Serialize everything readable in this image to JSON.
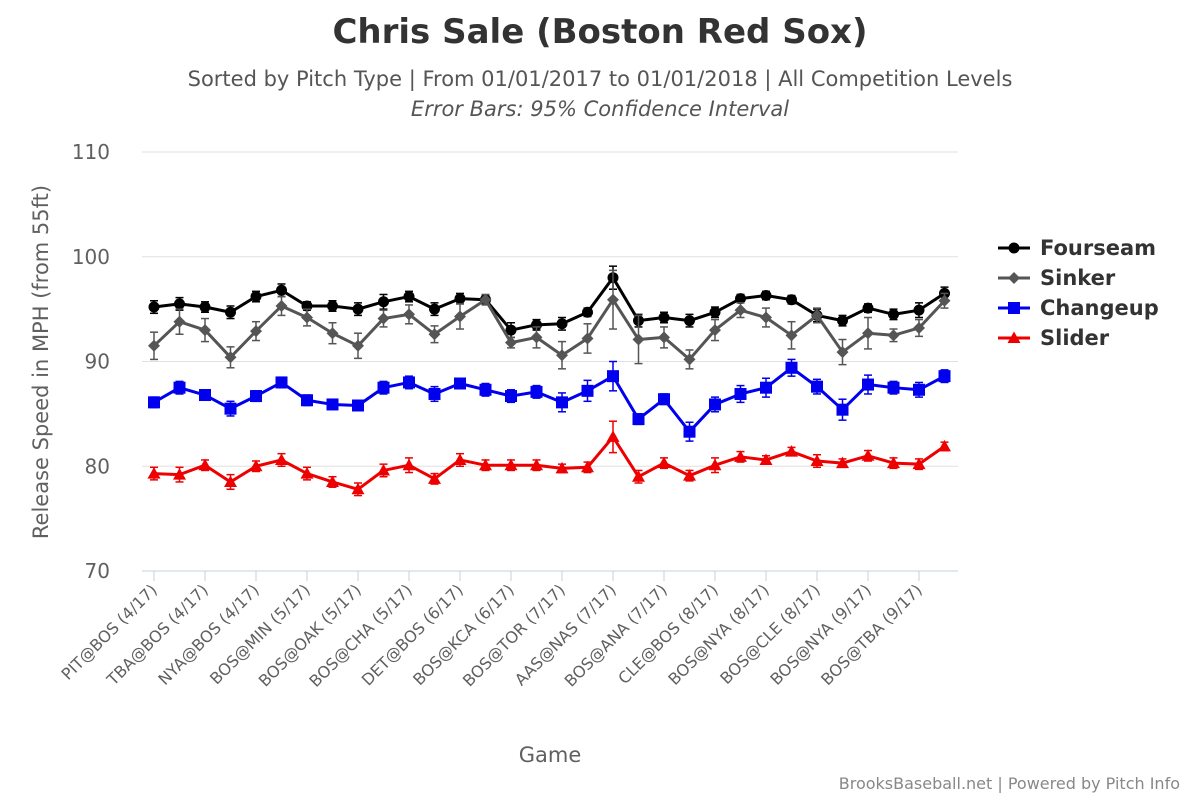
{
  "title": "Chris Sale (Boston Red Sox)",
  "subtitle": "Sorted by Pitch Type | From 01/01/2017 to 01/01/2018 | All Competition Levels",
  "subtitle2": "Error Bars: 95% Confidence Interval",
  "credits": "BrooksBaseball.net | Powered by Pitch Info",
  "chart_data": {
    "type": "line",
    "xlabel": "Game",
    "ylabel": "Release Speed in MPH (from 55ft)",
    "ylim": [
      70,
      110
    ],
    "yticks": [
      70,
      80,
      90,
      100,
      110
    ],
    "grid": true,
    "legend_position": "right",
    "tick_labels": [
      "PIT@BOS (4/17)",
      "TBA@BOS (4/17)",
      "NYA@BOS (4/17)",
      "BOS@MIN (5/17)",
      "BOS@OAK (5/17)",
      "BOS@CHA (5/17)",
      "DET@BOS (6/17)",
      "BOS@KCA (6/17)",
      "BOS@TOR (7/17)",
      "AAS@NAS (7/17)",
      "BOS@ANA (7/17)",
      "CLE@BOS (8/17)",
      "BOS@NYA (8/17)",
      "BOS@CLE (8/17)",
      "BOS@NYA (9/17)",
      "BOS@TBA (9/17)"
    ],
    "series": [
      {
        "name": "Fourseam",
        "color": "#000000",
        "marker": "circle",
        "values": [
          95.2,
          95.5,
          95.2,
          94.7,
          96.2,
          96.8,
          95.3,
          95.3,
          95.0,
          95.7,
          96.2,
          95.0,
          96.0,
          95.9,
          93.0,
          93.5,
          93.6,
          94.7,
          98.0,
          93.9,
          94.2,
          93.9,
          94.7,
          96.0,
          96.3,
          95.9,
          94.4,
          93.9,
          95.1,
          94.5,
          94.9,
          96.5
        ],
        "error": [
          0.6,
          0.6,
          0.5,
          0.6,
          0.5,
          0.6,
          0.4,
          0.5,
          0.6,
          0.7,
          0.5,
          0.6,
          0.5,
          0.4,
          0.7,
          0.5,
          0.6,
          0.4,
          1.1,
          0.6,
          0.5,
          0.6,
          0.5,
          0.4,
          0.4,
          0.4,
          0.6,
          0.5,
          0.4,
          0.5,
          0.7,
          0.6
        ]
      },
      {
        "name": "Sinker",
        "color": "#555555",
        "marker": "diamond",
        "values": [
          91.5,
          93.8,
          93.0,
          90.4,
          92.9,
          95.3,
          94.2,
          92.7,
          91.5,
          94.1,
          94.5,
          92.6,
          94.3,
          95.9,
          91.8,
          92.3,
          90.6,
          92.2,
          95.9,
          92.1,
          92.3,
          90.2,
          93.0,
          94.9,
          94.2,
          92.5,
          94.4,
          90.9,
          92.7,
          92.5,
          93.2,
          95.8
        ],
        "error": [
          1.3,
          1.2,
          1.1,
          1.0,
          0.9,
          0.9,
          0.8,
          1.0,
          1.2,
          0.8,
          0.9,
          0.8,
          1.2,
          0.5,
          0.5,
          1.0,
          1.3,
          1.4,
          2.8,
          2.3,
          1.0,
          0.9,
          1.0,
          0.7,
          0.9,
          1.3,
          0.7,
          1.2,
          1.5,
          0.6,
          0.8,
          0.7
        ]
      },
      {
        "name": "Changeup",
        "color": "#0000ee",
        "marker": "square",
        "values": [
          86.1,
          87.5,
          86.8,
          85.5,
          86.7,
          88.0,
          86.3,
          85.9,
          85.8,
          87.5,
          88.0,
          86.9,
          87.9,
          87.3,
          86.7,
          87.1,
          86.1,
          87.2,
          88.6,
          84.5,
          86.4,
          83.3,
          85.9,
          86.9,
          87.5,
          89.4,
          87.6,
          85.4,
          87.8,
          87.5,
          87.3,
          88.6
        ],
        "error": [
          0.5,
          0.6,
          0.5,
          0.7,
          0.5,
          0.5,
          0.5,
          0.4,
          0.5,
          0.6,
          0.6,
          0.7,
          0.5,
          0.6,
          0.6,
          0.6,
          0.9,
          1.0,
          1.4,
          0.5,
          0.5,
          0.9,
          0.7,
          0.8,
          0.9,
          0.8,
          0.7,
          1.0,
          0.9,
          0.6,
          0.7,
          0.6
        ]
      },
      {
        "name": "Slider",
        "color": "#ee0000",
        "marker": "triangle",
        "values": [
          79.3,
          79.2,
          80.1,
          78.5,
          80.0,
          80.6,
          79.3,
          78.5,
          77.8,
          79.6,
          80.1,
          78.8,
          80.6,
          80.1,
          80.1,
          80.1,
          79.8,
          79.9,
          82.8,
          79.0,
          80.3,
          79.1,
          80.1,
          80.9,
          80.6,
          81.4,
          80.5,
          80.3,
          81.0,
          80.3,
          80.2,
          81.9
        ],
        "error": [
          0.6,
          0.7,
          0.5,
          0.7,
          0.5,
          0.6,
          0.6,
          0.5,
          0.6,
          0.6,
          0.7,
          0.5,
          0.6,
          0.5,
          0.5,
          0.5,
          0.4,
          0.5,
          1.5,
          0.6,
          0.5,
          0.5,
          0.7,
          0.5,
          0.4,
          0.4,
          0.6,
          0.4,
          0.5,
          0.5,
          0.5,
          0.4
        ]
      }
    ]
  }
}
